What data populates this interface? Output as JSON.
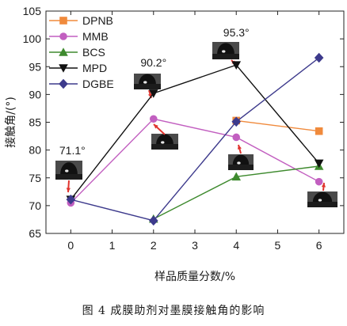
{
  "chart_data": {
    "type": "line",
    "xlabel": "样品质量分数/%",
    "ylabel": "接触角/(°)",
    "xlim": [
      -0.6,
      6.6
    ],
    "ylim": [
      65,
      105
    ],
    "x_ticks": [
      0,
      1,
      2,
      3,
      4,
      5,
      6
    ],
    "y_ticks": [
      65,
      70,
      75,
      80,
      85,
      90,
      95,
      100,
      105
    ],
    "x": [
      0,
      2,
      4,
      6
    ],
    "grid": false,
    "legend_position": "top-left",
    "series": [
      {
        "name": "DPNB",
        "values": [
          null,
          null,
          85.3,
          83.4
        ],
        "color": "#f08a3c",
        "marker": "square"
      },
      {
        "name": "MMB",
        "values": [
          70.5,
          85.6,
          82.3,
          74.3
        ],
        "color": "#c25fc0",
        "marker": "circle"
      },
      {
        "name": "BCS",
        "values": [
          null,
          67.6,
          75.2,
          77.1
        ],
        "color": "#3e8a2e",
        "marker": "triangle-up"
      },
      {
        "name": "MPD",
        "values": [
          71.1,
          90.2,
          95.3,
          77.6
        ],
        "color": "#111111",
        "marker": "triangle-down"
      },
      {
        "name": "DGBE",
        "values": [
          71.1,
          67.3,
          85.1,
          96.6
        ],
        "color": "#3d3a8c",
        "marker": "diamond"
      }
    ],
    "annotations": [
      {
        "text": "71.1°",
        "x": 0,
        "y": 71.1
      },
      {
        "text": "90.2°",
        "x": 2,
        "y": 90.2
      },
      {
        "text": "95.3°",
        "x": 4,
        "y": 95.3
      }
    ]
  },
  "caption": "图 4    成膜助剂对墨膜接触角的影响"
}
